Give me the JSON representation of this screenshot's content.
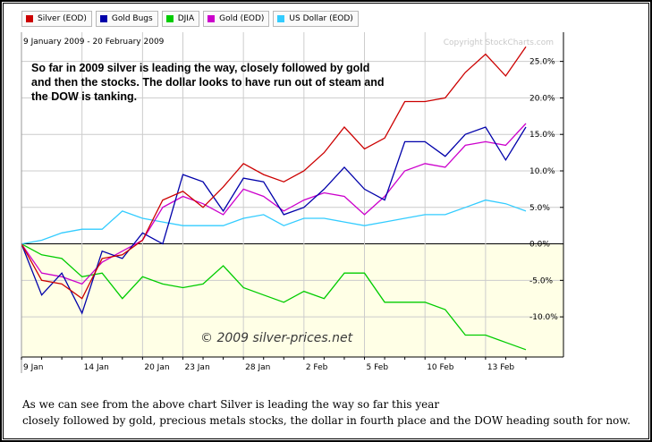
{
  "legend": [
    {
      "label": "Silver (EOD)",
      "color": "#cc0000"
    },
    {
      "label": "Gold Bugs",
      "color": "#0000aa"
    },
    {
      "label": "DJIA",
      "color": "#00cc00"
    },
    {
      "label": "Gold (EOD)",
      "color": "#cc00cc"
    },
    {
      "label": "US Dollar (EOD)",
      "color": "#33ccff"
    }
  ],
  "date_range": "9 January 2009 - 20 February 2009",
  "copyright": "Copyright StockCharts.com",
  "annotation": "So far in 2009 silver is leading the way, closely followed by gold and then the stocks. The dollar looks to have run out of steam and the DOW is tanking.",
  "watermark": "© 2009 silver-prices.net",
  "caption": {
    "line1": "As we can see from the above chart Silver is leading the way so far this year",
    "line2": "closely followed by gold, precious metals stocks, the dollar in fourth place and the DOW heading south for now."
  },
  "chart_data": {
    "type": "line",
    "x_tick_labels": [
      "9 Jan",
      "14 Jan",
      "20 Jan",
      "23 Jan",
      "28 Jan",
      "2 Feb",
      "5 Feb",
      "10 Feb",
      "13 Feb"
    ],
    "x_tick_index": [
      0,
      3,
      6,
      8,
      11,
      14,
      17,
      20,
      23
    ],
    "y_tick_labels": [
      "25.0%",
      "20.0%",
      "15.0%",
      "10.0%",
      "5.0%",
      "0.0%",
      "-5.0%",
      "-10.0%"
    ],
    "y_tick_values": [
      25,
      20,
      15,
      10,
      5,
      0,
      -5,
      -10
    ],
    "ylim": [
      -15.5,
      29
    ],
    "grid": true,
    "series": [
      {
        "name": "Silver (EOD)",
        "color": "#cc0000",
        "values": [
          0,
          -5,
          -5.5,
          -7.5,
          -2,
          -1.5,
          0.5,
          6,
          7.2,
          5,
          7.8,
          11,
          9.5,
          8.5,
          10,
          12.5,
          16,
          13,
          14.5,
          19.5,
          19.5,
          20,
          23.5,
          26,
          23,
          27
        ]
      },
      {
        "name": "Gold Bugs",
        "color": "#0000aa",
        "values": [
          0,
          -7,
          -4,
          -9.5,
          -1,
          -2,
          1.5,
          0,
          9.5,
          8.5,
          4.5,
          9,
          8.5,
          4,
          5,
          7.5,
          10.5,
          7.5,
          6,
          14,
          14,
          12,
          15,
          16,
          11.5,
          16
        ]
      },
      {
        "name": "DJIA",
        "color": "#00cc00",
        "values": [
          0,
          -1.5,
          -2,
          -4.5,
          -4,
          -7.5,
          -4.5,
          -5.5,
          -6,
          -5.5,
          -3,
          -6,
          -7,
          -8,
          -6.5,
          -7.5,
          -4,
          -4,
          -8,
          -8,
          -8,
          -9,
          -12.5,
          -12.5,
          -13.5,
          -14.5
        ]
      },
      {
        "name": "Gold (EOD)",
        "color": "#cc00cc",
        "values": [
          0,
          -4,
          -4.5,
          -5.5,
          -2.5,
          -1,
          0.5,
          5,
          6.5,
          5.5,
          4,
          7.5,
          6.5,
          4.5,
          6,
          7,
          6.5,
          4,
          6.5,
          10,
          11,
          10.5,
          13.5,
          14,
          13.5,
          16.5
        ]
      },
      {
        "name": "US Dollar (EOD)",
        "color": "#33ccff",
        "values": [
          0,
          0.5,
          1.5,
          2,
          2,
          4.5,
          3.5,
          3,
          2.5,
          2.5,
          2.5,
          3.5,
          4,
          2.5,
          3.5,
          3.5,
          3,
          2.5,
          3,
          3.5,
          4,
          4,
          5,
          6,
          5.5,
          4.5
        ]
      }
    ]
  }
}
